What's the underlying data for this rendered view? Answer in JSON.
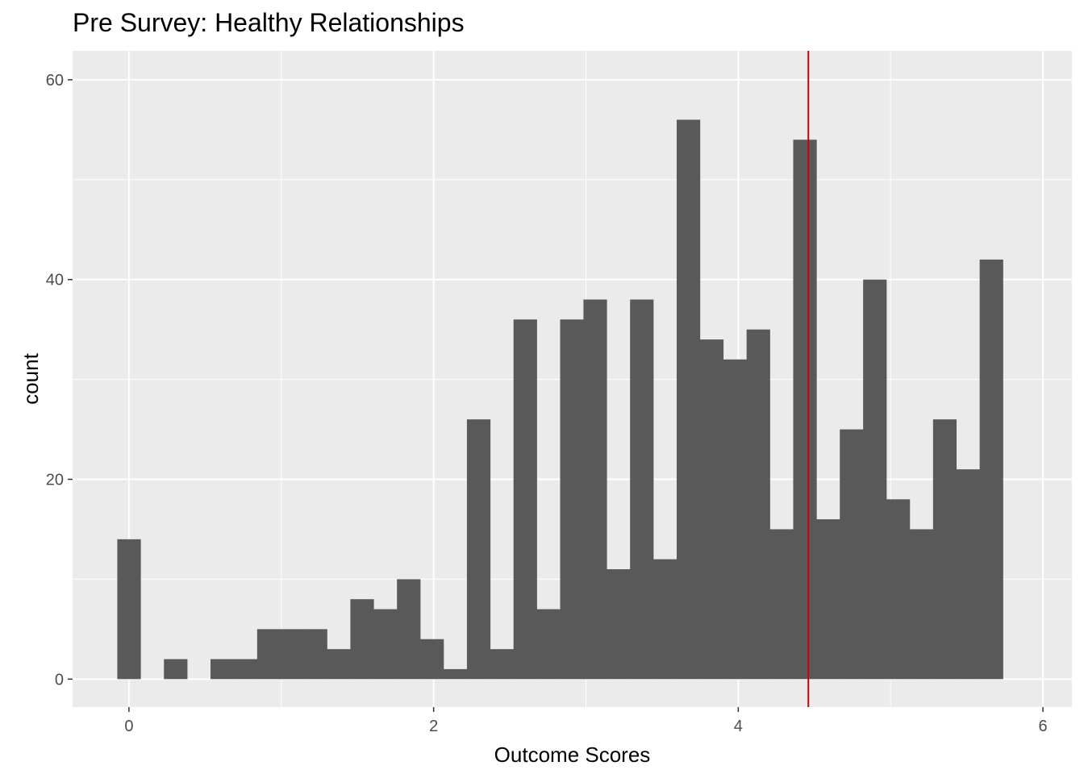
{
  "chart_data": {
    "type": "bar",
    "title": "Pre Survey: Healthy Relationships",
    "xlabel": "Outcome Scores",
    "ylabel": "count",
    "bin_width": 0.153,
    "bin_centers": [
      0.0,
      0.153,
      0.306,
      0.459,
      0.612,
      0.765,
      0.918,
      1.071,
      1.224,
      1.377,
      1.53,
      1.683,
      1.836,
      1.989,
      2.142,
      2.295,
      2.448,
      2.601,
      2.754,
      2.907,
      3.06,
      3.213,
      3.366,
      3.519,
      3.672,
      3.825,
      3.978,
      4.131,
      4.284,
      4.437,
      4.59,
      4.743,
      4.896,
      5.049,
      5.202,
      5.355,
      5.508,
      5.661
    ],
    "values": [
      14,
      0,
      2,
      0,
      2,
      2,
      5,
      5,
      5,
      3,
      8,
      7,
      10,
      4,
      1,
      26,
      3,
      36,
      7,
      36,
      38,
      11,
      38,
      12,
      56,
      34,
      32,
      35,
      15,
      54,
      16,
      25,
      40,
      18,
      15,
      26,
      21,
      42
    ],
    "xlim": [
      -0.37,
      6.19
    ],
    "ylim": [
      -2.8,
      62.9
    ],
    "x_ticks": [
      0,
      2,
      4,
      6
    ],
    "y_ticks": [
      0,
      20,
      40,
      60
    ],
    "x_tick_labels": [
      "0",
      "2",
      "4",
      "6"
    ],
    "y_tick_labels": [
      "0",
      "20",
      "40",
      "60"
    ],
    "vline": {
      "x": 4.46,
      "color": "#cc0000"
    },
    "grid": true,
    "colors": {
      "panel": "#ebebeb",
      "grid": "#ffffff",
      "bar": "#595959",
      "tick": "#333333"
    }
  }
}
